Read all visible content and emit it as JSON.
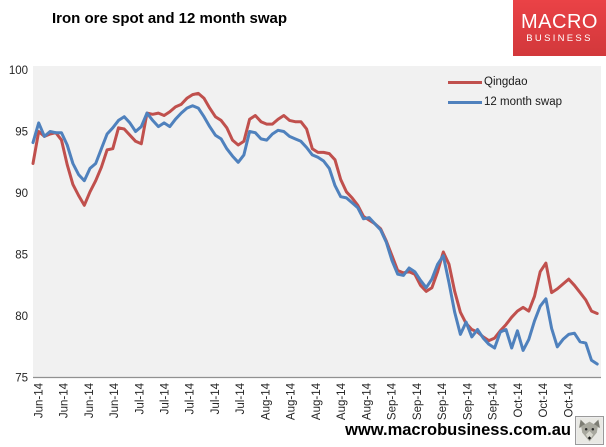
{
  "header": {
    "title": "Iron ore spot and 12 month swap"
  },
  "logo": {
    "line1": "MACRO",
    "line2": "BUSINESS",
    "bg_color": "#DD3B3D"
  },
  "footer": {
    "url": "www.macrobusiness.com.au",
    "icon": "wolf-icon"
  },
  "chart_data": {
    "type": "line",
    "title": "Iron ore spot and 12 month swap",
    "ylim": [
      75,
      100
    ],
    "y_ticks": [
      75,
      80,
      85,
      90,
      95,
      100
    ],
    "grid": false,
    "plot_bg": "#F1F1F1",
    "axis_color": "#919191",
    "legend_position": "top-right-inside",
    "x_tick_labels": [
      "Jun-14",
      "Jun-14",
      "Jun-14",
      "Jun-14",
      "Jul-14",
      "Jul-14",
      "Jul-14",
      "Jul-14",
      "Jul-14",
      "Aug-14",
      "Aug-14",
      "Aug-14",
      "Aug-14",
      "Aug-14",
      "Sep-14",
      "Sep-14",
      "Sep-14",
      "Sep-14",
      "Sep-14",
      "Oct-14",
      "Oct-14",
      "Oct-14"
    ],
    "series": [
      {
        "name": "Qingdao",
        "color": "#C0504D",
        "values": [
          92.4,
          95.0,
          94.6,
          94.8,
          94.9,
          94.3,
          92.3,
          90.7,
          89.8,
          89.0,
          90.1,
          91.0,
          92.1,
          93.5,
          93.6,
          95.3,
          95.2,
          94.7,
          94.2,
          94.0,
          96.5,
          96.4,
          96.5,
          96.3,
          96.6,
          97.0,
          97.2,
          97.7,
          98.0,
          98.1,
          97.7,
          96.9,
          96.2,
          95.9,
          95.3,
          94.3,
          93.9,
          94.2,
          96.0,
          96.3,
          95.8,
          95.6,
          95.6,
          96.0,
          96.3,
          95.9,
          95.8,
          95.8,
          95.2,
          93.6,
          93.3,
          93.3,
          93.2,
          92.7,
          91.1,
          90.1,
          89.6,
          89.0,
          88.1,
          87.8,
          87.5,
          87.1,
          86.1,
          84.9,
          83.7,
          83.5,
          83.6,
          83.4,
          82.5,
          82.0,
          82.3,
          83.6,
          85.2,
          84.2,
          82.0,
          80.3,
          79.4,
          78.9,
          78.7,
          78.3,
          78.0,
          78.2,
          78.8,
          79.3,
          79.9,
          80.4,
          80.7,
          80.4,
          81.6,
          83.6,
          84.3,
          81.9,
          82.2,
          82.6,
          83.0,
          82.5,
          81.9,
          81.3,
          80.4,
          80.2
        ]
      },
      {
        "name": "12 month swap",
        "color": "#4F81BD",
        "values": [
          94.1,
          95.7,
          94.6,
          95.0,
          94.9,
          94.9,
          93.9,
          92.4,
          91.5,
          91.0,
          92.0,
          92.4,
          93.6,
          94.8,
          95.3,
          95.9,
          96.2,
          95.7,
          95.0,
          95.4,
          96.5,
          95.9,
          95.4,
          95.7,
          95.4,
          96.0,
          96.5,
          96.9,
          97.1,
          96.9,
          96.2,
          95.4,
          94.7,
          94.4,
          93.6,
          93.0,
          92.5,
          93.1,
          95.0,
          94.9,
          94.4,
          94.3,
          94.8,
          95.1,
          95.0,
          94.6,
          94.4,
          94.2,
          93.7,
          93.1,
          92.9,
          92.6,
          92.0,
          90.6,
          89.7,
          89.6,
          89.2,
          88.8,
          87.9,
          88.0,
          87.5,
          87.0,
          86.0,
          84.5,
          83.4,
          83.3,
          83.9,
          83.6,
          82.9,
          82.3,
          83.0,
          84.2,
          84.9,
          82.7,
          80.3,
          78.5,
          79.5,
          78.3,
          78.9,
          78.2,
          77.7,
          77.4,
          78.7,
          78.9,
          77.4,
          78.8,
          77.2,
          78.1,
          79.6,
          80.8,
          81.4,
          79.0,
          77.5,
          78.1,
          78.5,
          78.6,
          77.9,
          77.8,
          76.4,
          76.1
        ]
      }
    ]
  }
}
